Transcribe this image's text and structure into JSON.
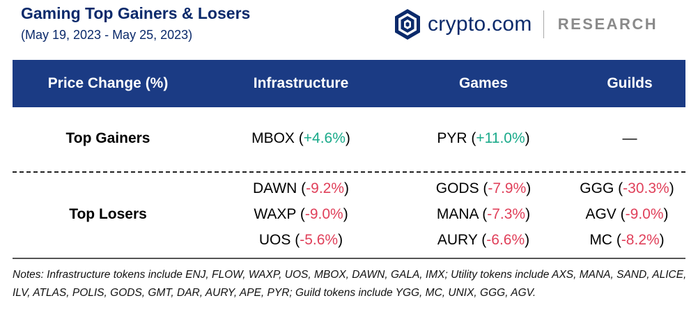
{
  "header": {
    "title": "Gaming Top Gainers & Losers",
    "subtitle": "(May 19, 2023 - May 25, 2023)"
  },
  "brand": {
    "name": "crypto.com",
    "research": "RESEARCH",
    "logo_color": "#0b2a6b"
  },
  "table": {
    "columns": [
      "Price Change (%)",
      "Infrastructure",
      "Games",
      "Guilds"
    ],
    "header_bg": "#1b3b84",
    "gainers": {
      "label": "Top Gainers",
      "infrastructure": [
        {
          "token": "MBOX",
          "change": "+4.6%"
        }
      ],
      "games": [
        {
          "token": "PYR",
          "change": "+11.0%"
        }
      ],
      "guilds": "—"
    },
    "losers": {
      "label": "Top Losers",
      "infrastructure": [
        {
          "token": "DAWN",
          "change": "-9.2%"
        },
        {
          "token": "WAXP",
          "change": "-9.0%"
        },
        {
          "token": "UOS",
          "change": "-5.6%"
        }
      ],
      "games": [
        {
          "token": "GODS",
          "change": "-7.9%"
        },
        {
          "token": "MANA",
          "change": "-7.3%"
        },
        {
          "token": "AURY",
          "change": "-6.6%"
        }
      ],
      "guilds": [
        {
          "token": "GGG",
          "change": "-30.3%"
        },
        {
          "token": "AGV",
          "change": "-9.0%"
        },
        {
          "token": "MC",
          "change": "-8.2%"
        }
      ]
    },
    "positive_color": "#1aaa8a",
    "negative_color": "#e0405a"
  },
  "notes": "Notes: Infrastructure tokens include ENJ, FLOW, WAXP, UOS, MBOX, DAWN, GALA, IMX; Utility tokens include AXS, MANA, SAND, ALICE, ILV, ATLAS, POLIS, GODS, GMT, DAR, AURY, APE, PYR; Guild tokens include YGG, MC, UNIX, GGG, AGV."
}
